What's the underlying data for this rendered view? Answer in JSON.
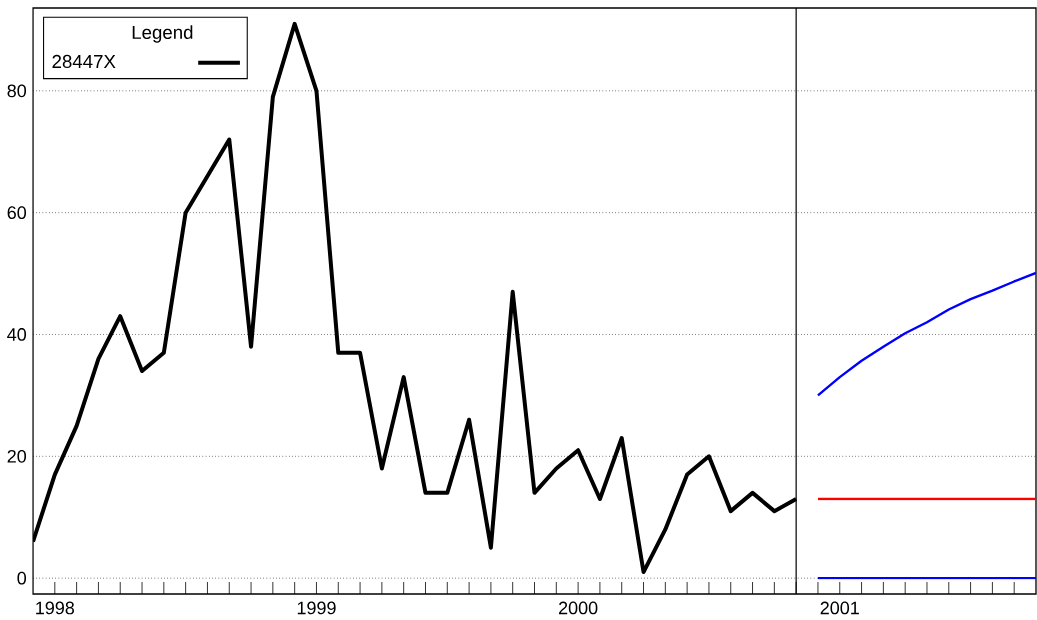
{
  "chart_data": {
    "type": "line",
    "legend_title": "Legend",
    "legend": "top left",
    "grid": "y",
    "line_style": "solid",
    "marker": "none",
    "xlim": [
      "1997-12",
      "2001-10"
    ],
    "ylim": [
      -2.6,
      93.6
    ],
    "yticks": [
      0,
      20,
      40,
      60,
      80
    ],
    "xticks": [
      {
        "value": "1998-01",
        "label": "1998"
      },
      {
        "value": "1999-01",
        "label": "1999"
      },
      {
        "value": "2000-01",
        "label": "2000"
      },
      {
        "value": "2001-01",
        "label": "2001"
      },
      {
        "value": "1998-02",
        "label": null
      },
      {
        "value": "1998-03",
        "label": null
      },
      {
        "value": "1998-04",
        "label": null
      },
      {
        "value": "1998-05",
        "label": null
      },
      {
        "value": "1998-06",
        "label": null
      },
      {
        "value": "1998-07",
        "label": null
      },
      {
        "value": "1998-08",
        "label": null
      },
      {
        "value": "1998-09",
        "label": null
      },
      {
        "value": "1998-10",
        "label": null
      },
      {
        "value": "1998-11",
        "label": null
      },
      {
        "value": "1998-12",
        "label": null
      },
      {
        "value": "1999-02",
        "label": null
      },
      {
        "value": "1999-03",
        "label": null
      },
      {
        "value": "1999-04",
        "label": null
      },
      {
        "value": "1999-05",
        "label": null
      },
      {
        "value": "1999-06",
        "label": null
      },
      {
        "value": "1999-07",
        "label": null
      },
      {
        "value": "1999-08",
        "label": null
      },
      {
        "value": "1999-09",
        "label": null
      },
      {
        "value": "1999-10",
        "label": null
      },
      {
        "value": "1999-11",
        "label": null
      },
      {
        "value": "1999-12",
        "label": null
      },
      {
        "value": "2000-02",
        "label": null
      },
      {
        "value": "2000-03",
        "label": null
      },
      {
        "value": "2000-04",
        "label": null
      },
      {
        "value": "2000-05",
        "label": null
      },
      {
        "value": "2000-06",
        "label": null
      },
      {
        "value": "2000-07",
        "label": null
      },
      {
        "value": "2000-08",
        "label": null
      },
      {
        "value": "2000-09",
        "label": null
      },
      {
        "value": "2000-10",
        "label": null
      },
      {
        "value": "2000-11",
        "label": null
      },
      {
        "value": "2000-12",
        "label": null
      },
      {
        "value": "2001-02",
        "label": null
      },
      {
        "value": "2001-03",
        "label": null
      },
      {
        "value": "2001-04",
        "label": null
      },
      {
        "value": "2001-05",
        "label": null
      },
      {
        "value": "2001-06",
        "label": null
      },
      {
        "value": "2001-07",
        "label": null
      },
      {
        "value": "2001-08",
        "label": null
      },
      {
        "value": "2001-09",
        "label": null
      }
    ],
    "ref_lines": [
      {
        "axis": "x",
        "value": "2000-11",
        "color": "#000000",
        "line_style": "solid"
      }
    ],
    "series": [
      {
        "name": "28447X",
        "color": "#000000",
        "x": [
          "1997-12",
          "1998-01",
          "1998-02",
          "1998-03",
          "1998-04",
          "1998-05",
          "1998-06",
          "1998-07",
          "1998-08",
          "1998-09",
          "1998-10",
          "1998-11",
          "1998-12",
          "1999-01",
          "1999-02",
          "1999-03",
          "1999-04",
          "1999-05",
          "1999-06",
          "1999-07",
          "1999-08",
          "1999-09",
          "1999-10",
          "1999-11",
          "1999-12",
          "2000-01",
          "2000-02",
          "2000-03",
          "2000-04",
          "2000-05",
          "2000-06",
          "2000-07",
          "2000-08",
          "2000-09",
          "2000-10",
          "2000-11"
        ],
        "values": [
          6,
          17,
          25,
          36,
          43,
          34,
          37,
          60,
          66,
          72,
          38,
          79,
          91,
          80,
          37,
          37,
          18,
          33,
          14,
          14,
          26,
          5,
          47,
          14,
          18,
          21,
          13,
          23,
          1,
          8,
          17,
          20,
          11,
          14,
          11,
          13
        ]
      },
      {
        "color": "#0000ff",
        "x": [
          "2000-12",
          "2001-01",
          "2001-02",
          "2001-03",
          "2001-04",
          "2001-05",
          "2001-06",
          "2001-07",
          "2001-08",
          "2001-09",
          "2001-10"
        ],
        "values": [
          30,
          33,
          35.7,
          38,
          40.2,
          42,
          44.1,
          45.8,
          47.2,
          48.7,
          50.1
        ]
      },
      {
        "color": "#ff0000",
        "x": [
          "2000-12",
          "2001-10"
        ],
        "values": [
          13,
          13
        ]
      },
      {
        "color": "#0000ff",
        "x": [
          "2000-12",
          "2001-10"
        ],
        "values": [
          0,
          0
        ]
      }
    ]
  }
}
